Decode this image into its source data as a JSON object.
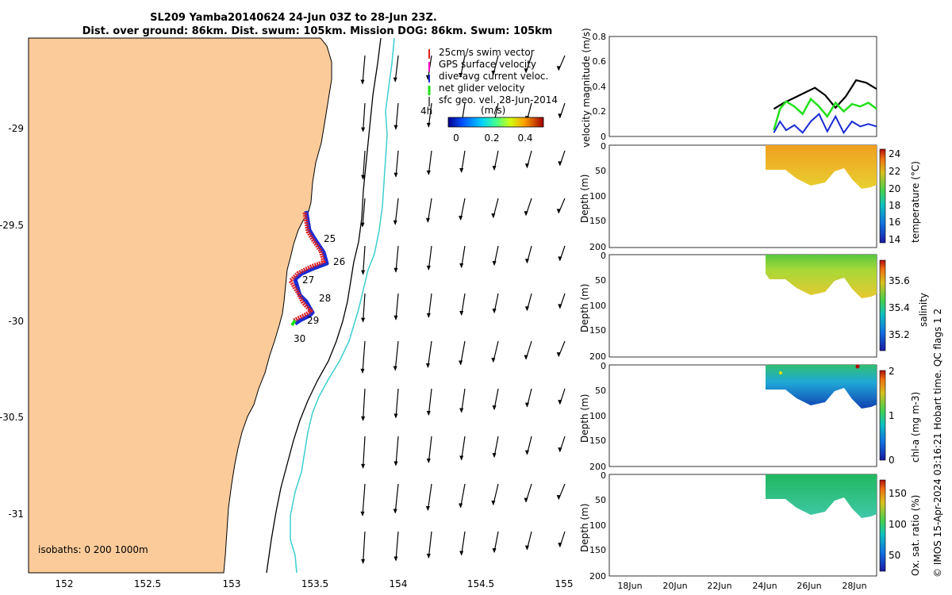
{
  "title_line1": "SL209 Yamba20140624 24-Jun 03Z to 28-Jun 23Z.",
  "title_line2": "Dist. over ground: 86km. Dist. swum: 105km. Mission DOG: 86km. Swum: 105km",
  "colors": {
    "land": "#fbcb9a",
    "isobath_200": "#000000",
    "isobath_1000": "#3ccfd0",
    "track": "#e02020",
    "dive_avg": "#1a2bd4",
    "net": "#22e01a",
    "gps": "#ff00cc"
  },
  "map": {
    "x_ticks": [
      "152",
      "152.5",
      "153",
      "153.5",
      "154",
      "154.5",
      "155"
    ],
    "y_ticks": [
      "-29",
      "-29.5",
      "-30",
      "-30.5",
      "-31"
    ],
    "legend": [
      "25cm/s swim vector",
      "GPS surface velocity",
      "dive-avg current veloc.",
      "net glider velocity",
      "sfc geo. vel. 28-Jun-2014"
    ],
    "vector_scale_label": "4h",
    "colorbar_title": "(m/s)",
    "colorbar_ticks": [
      "0",
      "0.2",
      "0.4"
    ],
    "isobaths_label": "isobaths: 0   200  1000m",
    "day_labels": [
      "25",
      "26",
      "27",
      "28",
      "29",
      "30"
    ]
  },
  "chart_data": [
    {
      "type": "line",
      "ylabel": "velocity magnitude (m/s)",
      "ylim": [
        0,
        0.8
      ],
      "y_ticks": [
        "0",
        "0.2",
        "0.4",
        "0.6",
        "0.8"
      ],
      "xlim": [
        "16-Jun",
        "29-Jun"
      ],
      "x_ticks": [
        "18Jun",
        "20Jun",
        "22Jun",
        "24Jun",
        "26Jun",
        "28Jun"
      ],
      "series": [
        {
          "x": [
            24.0,
            24.5,
            25.0,
            25.5,
            26.0,
            26.5,
            27.0,
            27.5,
            28.0,
            28.5,
            29.0
          ],
          "values": [
            0.22,
            0.27,
            0.31,
            0.35,
            0.39,
            0.33,
            0.23,
            0.32,
            0.45,
            0.43,
            0.38
          ]
        },
        {
          "x": [
            24.0,
            24.3,
            24.6,
            25.0,
            25.4,
            25.8,
            26.2,
            26.6,
            27.0,
            27.4,
            27.8,
            28.2,
            28.6,
            29.0
          ],
          "values": [
            0.05,
            0.22,
            0.28,
            0.24,
            0.18,
            0.3,
            0.24,
            0.16,
            0.27,
            0.2,
            0.26,
            0.24,
            0.27,
            0.22
          ]
        },
        {
          "x": [
            24.0,
            24.3,
            24.6,
            25.0,
            25.4,
            25.8,
            26.2,
            26.6,
            27.0,
            27.4,
            27.8,
            28.2,
            28.6,
            29.0
          ],
          "values": [
            0.03,
            0.12,
            0.05,
            0.09,
            0.03,
            0.12,
            0.18,
            0.04,
            0.16,
            0.03,
            0.12,
            0.08,
            0.1,
            0.08
          ]
        }
      ],
      "grid": false
    },
    {
      "type": "heatmap",
      "ylabel": "Depth (m)",
      "ylim": [
        200,
        0
      ],
      "y_ticks": [
        "0",
        "50",
        "100",
        "150",
        "200"
      ],
      "colorbar_label": "temperature (°C)",
      "colorbar_ticks": [
        "24",
        "22",
        "20",
        "18",
        "16",
        "14"
      ]
    },
    {
      "type": "heatmap",
      "ylabel": "Depth (m)",
      "ylim": [
        200,
        0
      ],
      "y_ticks": [
        "0",
        "50",
        "100",
        "150",
        "200"
      ],
      "colorbar_label": "salinity",
      "colorbar_ticks": [
        "35.6",
        "35.4",
        "35.2"
      ]
    },
    {
      "type": "heatmap",
      "ylabel": "Depth (m)",
      "ylim": [
        200,
        0
      ],
      "y_ticks": [
        "0",
        "50",
        "100",
        "150",
        "200"
      ],
      "colorbar_label": "chl-a (mg m-3)",
      "colorbar_ticks": [
        "2",
        "1",
        "0"
      ]
    },
    {
      "type": "heatmap",
      "ylabel": "Depth (m)",
      "ylim": [
        200,
        0
      ],
      "y_ticks": [
        "0",
        "50",
        "100",
        "150",
        "200"
      ],
      "colorbar_label": "Ox. sat. ratio (%)",
      "colorbar_ticks": [
        "150",
        "100",
        "50"
      ]
    }
  ],
  "footer": "© IMOS 15-Apr-2024 03:16:21 Hobart time. QC flags 1  2"
}
